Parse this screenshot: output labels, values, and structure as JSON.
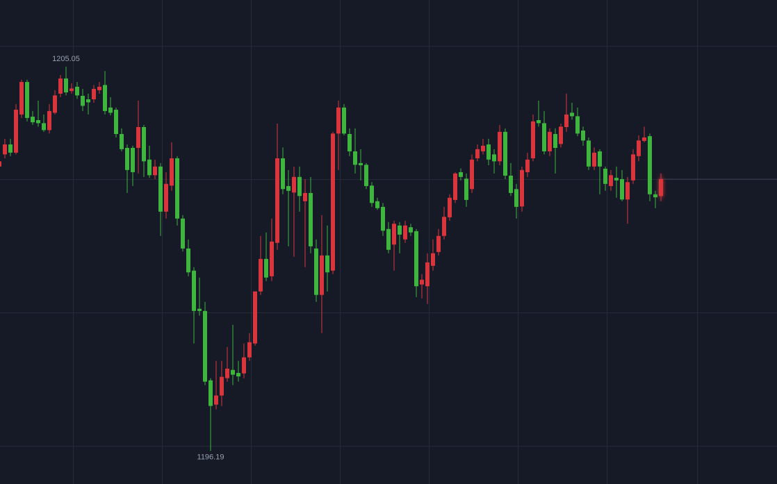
{
  "chart_data": {
    "type": "candlestick",
    "up_color": "#d8363c",
    "down_color": "#3fb43f",
    "ylim": [
      1195.43,
      1206.59
    ],
    "open": [
      1202.75,
      1203.03,
      1203.26,
      1203.07,
      1203.95,
      1204.7,
      1203.9,
      1203.82,
      1203.75,
      1203.59,
      1203.99,
      1204.43,
      1204.78,
      1204.49,
      1204.59,
      1204.38,
      1204.3,
      1204.3,
      1204.51,
      1204.63,
      1204.11,
      1204.06,
      1203.5,
      1203.18,
      1203.18,
      1203.18,
      1203.66,
      1202.91,
      1202.55,
      1202.75,
      1201.71,
      1202.31,
      1202.94,
      1201.55,
      1200.86,
      1200.35,
      1199.47,
      1199.42,
      1197.82,
      1197.26,
      1197.47,
      1197.87,
      1198.06,
      1197.99,
      1197.98,
      1198.35,
      1198.67,
      1199.87,
      1200.62,
      1200.22,
      1200.99,
      1202.94,
      1202.3,
      1202.15,
      1202.51,
      1201.95,
      1202.14,
      1200.86,
      1199.79,
      1200.7,
      1200.35,
      1203.51,
      1204.11,
      1203.5,
      1203.1,
      1202.83,
      1202.79,
      1202.31,
      1201.95,
      1201.82,
      1201.31,
      1200.95,
      1201.39,
      1201.07,
      1201.35,
      1201.26,
      1200.03,
      1199.99,
      1200.46,
      1200.78,
      1201.15,
      1201.58,
      1201.98,
      1202.62,
      1202.47,
      1202.23,
      1202.94,
      1203.1,
      1203.26,
      1203.03,
      1202.87,
      1203.55,
      1202.54,
      1202.23,
      1201.83,
      1202.62,
      1202.94,
      1203.82,
      1203.75,
      1203.1,
      1203.5,
      1203.27,
      1203.66,
      1203.99,
      1203.91,
      1203.58,
      1203.35,
      1202.75,
      1203.1,
      1202.7,
      1202.3,
      1202.49,
      1202.46,
      1201.99,
      1202.43,
      1202.99,
      1203.34,
      1203.45,
      1202.11,
      1202.07
    ],
    "high": [
      1202.99,
      1203.39,
      1203.39,
      1204.19,
      1204.75,
      1204.75,
      1204.03,
      1204.27,
      1203.95,
      1204.19,
      1204.51,
      1204.86,
      1205.05,
      1204.67,
      1204.7,
      1204.54,
      1204.43,
      1204.63,
      1204.7,
      1204.95,
      1204.35,
      1204.11,
      1203.63,
      1203.26,
      1203.23,
      1204.27,
      1203.71,
      1203.23,
      1202.91,
      1202.83,
      1202.62,
      1203.31,
      1202.99,
      1201.63,
      1201.07,
      1200.43,
      1200.19,
      1199.63,
      1197.87,
      1198.27,
      1198.27,
      1198.59,
      1199.1,
      1198.27,
      1198.67,
      1198.91,
      1199.87,
      1201.15,
      1201.23,
      1201.55,
      1203.74,
      1203.19,
      1202.67,
      1202.75,
      1202.75,
      1202.46,
      1202.51,
      1201.07,
      1201.63,
      1201.39,
      1203.55,
      1204.27,
      1204.19,
      1203.63,
      1203.63,
      1203.15,
      1202.83,
      1202.39,
      1202.03,
      1201.91,
      1201.47,
      1201.5,
      1201.47,
      1201.5,
      1201.43,
      1201.31,
      1200.27,
      1200.75,
      1201.07,
      1201.31,
      1201.82,
      1202.11,
      1202.62,
      1202.71,
      1202.59,
      1203.03,
      1203.26,
      1203.39,
      1203.39,
      1203.15,
      1203.71,
      1203.63,
      1202.83,
      1202.35,
      1202.75,
      1203.07,
      1203.95,
      1204.27,
      1204.03,
      1203.63,
      1203.63,
      1203.74,
      1204.43,
      1204.22,
      1204.11,
      1203.67,
      1203.42,
      1203.19,
      1203.15,
      1202.75,
      1202.67,
      1202.75,
      1202.67,
      1202.51,
      1203.15,
      1203.47,
      1203.67,
      1203.51,
      1202.19,
      1202.59
    ],
    "low": [
      1202.67,
      1202.94,
      1202.99,
      1203.03,
      1203.87,
      1203.79,
      1203.71,
      1203.67,
      1203.55,
      1203.51,
      1203.95,
      1204.35,
      1204.39,
      1204.43,
      1204.31,
      1204.03,
      1203.95,
      1204.22,
      1204.43,
      1203.95,
      1203.93,
      1203.42,
      1203.1,
      1202.14,
      1202.3,
      1202.59,
      1202.51,
      1202.49,
      1202.46,
      1201.15,
      1201.55,
      1202.19,
      1201.39,
      1200.79,
      1200.22,
      1198.67,
      1199.31,
      1197.71,
      1196.19,
      1197.15,
      1197.23,
      1197.79,
      1197.71,
      1197.79,
      1197.87,
      1198.27,
      1198.62,
      1199.79,
      1200.11,
      1200.11,
      1200.83,
      1202.11,
      1200.91,
      1200.67,
      1201.71,
      1200.43,
      1200.75,
      1199.63,
      1198.91,
      1199.87,
      1200.27,
      1202.67,
      1203.47,
      1202.99,
      1202.59,
      1202.43,
      1202.23,
      1201.82,
      1201.75,
      1201.15,
      1200.75,
      1200.35,
      1200.75,
      1200.99,
      1201.15,
      1199.74,
      1199.71,
      1199.58,
      1200.35,
      1200.7,
      1201.07,
      1201.5,
      1201.91,
      1202.43,
      1201.82,
      1202.14,
      1202.87,
      1203.03,
      1202.78,
      1202.59,
      1202.78,
      1202.46,
      1202.07,
      1201.55,
      1201.71,
      1202.51,
      1202.87,
      1203.67,
      1203.03,
      1202.99,
      1202.59,
      1203.19,
      1203.55,
      1203.83,
      1203.45,
      1203.23,
      1202.67,
      1202.67,
      1202.11,
      1202.19,
      1202.19,
      1202.03,
      1201.95,
      1201.43,
      1202.35,
      1202.87,
      1203.31,
      1201.95,
      1201.79,
      1201.95
    ],
    "close": [
      1202.87,
      1203.26,
      1203.07,
      1204.06,
      1204.7,
      1203.87,
      1203.77,
      1203.75,
      1203.59,
      1204.03,
      1204.39,
      1204.78,
      1204.46,
      1204.55,
      1204.39,
      1204.15,
      1204.23,
      1204.54,
      1204.59,
      1204.03,
      1203.99,
      1203.5,
      1203.15,
      1202.67,
      1202.62,
      1203.66,
      1202.87,
      1202.55,
      1202.75,
      1201.71,
      1202.35,
      1202.94,
      1201.55,
      1200.86,
      1200.31,
      1199.42,
      1199.42,
      1197.79,
      1197.23,
      1197.47,
      1197.9,
      1198.09,
      1197.95,
      1197.91,
      1198.35,
      1198.7,
      1199.87,
      1200.62,
      1200.19,
      1201.02,
      1202.94,
      1202.23,
      1202.19,
      1202.51,
      1202.07,
      1202.14,
      1200.91,
      1199.79,
      1200.7,
      1200.31,
      1203.51,
      1204.11,
      1203.51,
      1203.1,
      1202.79,
      1202.78,
      1202.3,
      1201.91,
      1201.79,
      1201.27,
      1200.83,
      1201.43,
      1201.18,
      1201.39,
      1201.23,
      1199.99,
      1200.14,
      1200.54,
      1200.75,
      1201.15,
      1201.59,
      1202.03,
      1202.59,
      1202.51,
      1201.98,
      1202.91,
      1203.15,
      1203.23,
      1202.91,
      1202.87,
      1203.55,
      1202.54,
      1202.14,
      1201.82,
      1202.67,
      1202.91,
      1203.79,
      1203.75,
      1203.1,
      1203.55,
      1203.18,
      1203.67,
      1203.95,
      1203.91,
      1203.51,
      1203.35,
      1202.75,
      1203.07,
      1202.75,
      1202.35,
      1202.55,
      1202.43,
      1201.99,
      1202.39,
      1203.03,
      1203.35,
      1203.42,
      1202.11,
      1202.04,
      1202.46
    ]
  }
}
